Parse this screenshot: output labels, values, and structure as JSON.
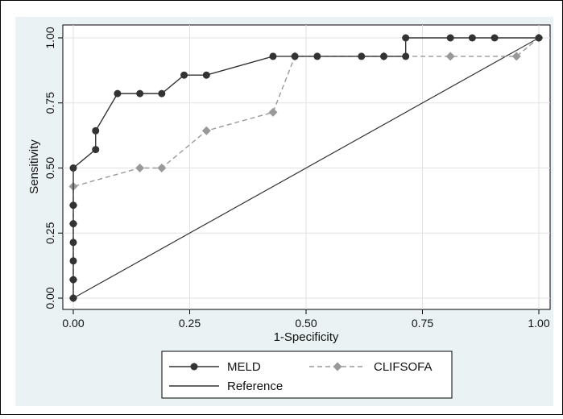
{
  "chart_data": {
    "type": "line",
    "title": "",
    "xlabel": "1-Specificity",
    "ylabel": "Sensitivity",
    "xlim": [
      0,
      1
    ],
    "ylim": [
      0,
      1
    ],
    "xticks": [
      "0.00",
      "0.25",
      "0.50",
      "0.75",
      "1.00"
    ],
    "yticks": [
      "0.00",
      "0.25",
      "0.50",
      "0.75",
      "1.00"
    ],
    "grid": true,
    "legend_position": "bottom",
    "series": [
      {
        "name": "MELD",
        "color": "#333333",
        "marker": "circle",
        "line_style": "solid",
        "x": [
          0,
          0,
          0,
          0,
          0,
          0,
          0,
          0.048,
          0.048,
          0.095,
          0.143,
          0.19,
          0.238,
          0.286,
          0.429,
          0.476,
          0.524,
          0.619,
          0.667,
          0.714,
          0.714,
          0.81,
          0.857,
          0.905,
          1.0
        ],
        "y": [
          0,
          0.071,
          0.143,
          0.214,
          0.286,
          0.357,
          0.5,
          0.571,
          0.643,
          0.786,
          0.786,
          0.786,
          0.857,
          0.857,
          0.929,
          0.929,
          0.929,
          0.929,
          0.929,
          0.929,
          1.0,
          1.0,
          1.0,
          1.0,
          1.0
        ]
      },
      {
        "name": "CLIFSOFA",
        "color": "#999999",
        "marker": "diamond",
        "line_style": "dashed",
        "x": [
          0,
          0,
          0,
          0,
          0,
          0.143,
          0.19,
          0.286,
          0.429,
          0.476,
          0.667,
          0.81,
          0.952,
          1.0
        ],
        "y": [
          0,
          0.071,
          0.286,
          0.357,
          0.429,
          0.5,
          0.5,
          0.643,
          0.714,
          0.929,
          0.929,
          0.929,
          0.929,
          1.0
        ]
      },
      {
        "name": "Reference",
        "color": "#333333",
        "marker": "none",
        "line_style": "solid",
        "x": [
          0,
          1
        ],
        "y": [
          0,
          1
        ]
      }
    ]
  }
}
